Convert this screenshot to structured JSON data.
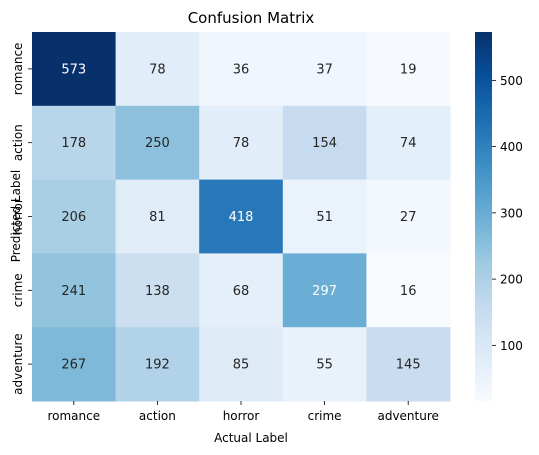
{
  "chart_data": {
    "type": "heatmap",
    "title": "Confusion Matrix",
    "xlabel": "Actual Label",
    "ylabel": "Predicted Label",
    "x_categories": [
      "romance",
      "action",
      "horror",
      "crime",
      "adventure"
    ],
    "y_categories": [
      "romance",
      "action",
      "horror",
      "crime",
      "adventure"
    ],
    "values": [
      [
        573,
        78,
        36,
        37,
        19
      ],
      [
        178,
        250,
        78,
        154,
        74
      ],
      [
        206,
        81,
        418,
        51,
        27
      ],
      [
        241,
        138,
        68,
        297,
        16
      ],
      [
        267,
        192,
        85,
        55,
        145
      ]
    ],
    "colormap": "Blues",
    "colorbar": {
      "ticks": [
        100,
        200,
        300,
        400,
        500
      ],
      "range": [
        16,
        573
      ]
    }
  }
}
